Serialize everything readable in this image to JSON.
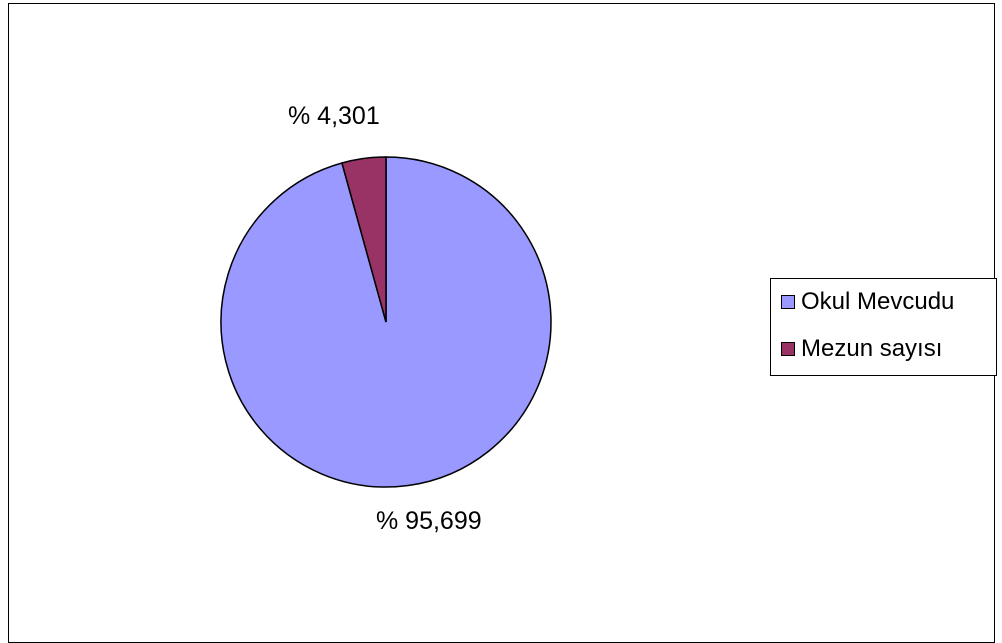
{
  "chart_data": {
    "type": "pie",
    "title": "",
    "series": [
      {
        "values": [
          95.699,
          4.301
        ]
      }
    ],
    "categories": [
      "Okul Mevcudu",
      "Mezun sayısı"
    ],
    "colors": [
      "#9999ff",
      "#993366"
    ],
    "data_labels": [
      "% 95,699",
      "% 4,301"
    ],
    "legend": {
      "position": "right",
      "entries": [
        "Okul Mevcudu",
        "Mezun sayısı"
      ]
    }
  }
}
